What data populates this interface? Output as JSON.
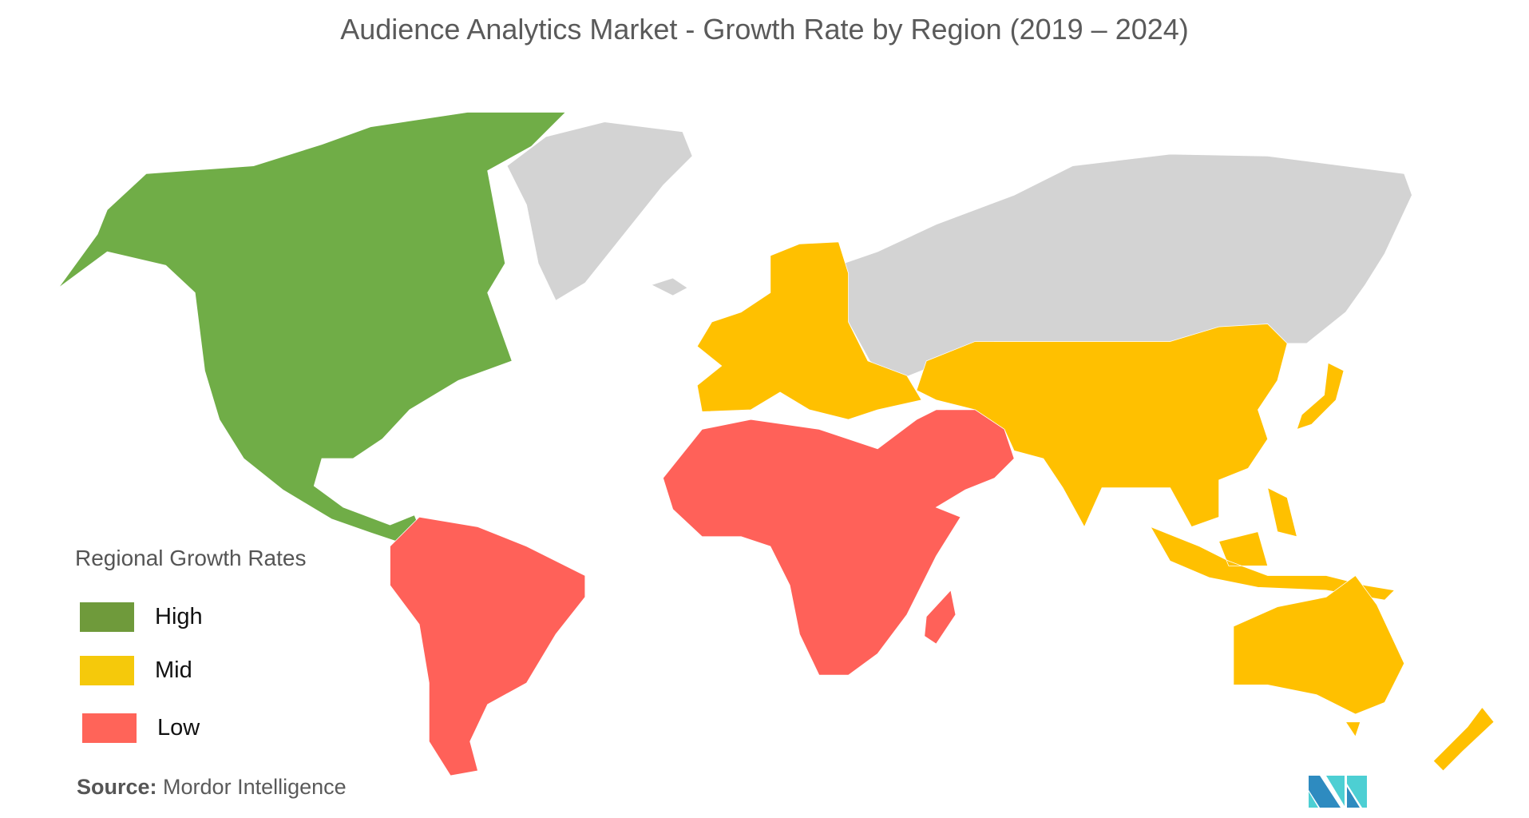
{
  "title": "Audience Analytics Market  - Growth Rate by Region (2019 – 2024)",
  "legend": {
    "title": "Regional Growth Rates",
    "items": [
      {
        "label": "High",
        "color": "#6f9a3b"
      },
      {
        "label": "Mid",
        "color": "#f5c90b"
      },
      {
        "label": "Low",
        "color": "#ff6459"
      }
    ]
  },
  "map_colors": {
    "high": "#70ad47",
    "mid": "#ffc000",
    "low": "#ff6159",
    "no_data": "#d3d3d3"
  },
  "source": {
    "label": "Source:",
    "text": "Mordor Intelligence"
  },
  "logo": {
    "text": "MI",
    "colors": [
      "#2e8bc0",
      "#4dcfd3"
    ]
  }
}
